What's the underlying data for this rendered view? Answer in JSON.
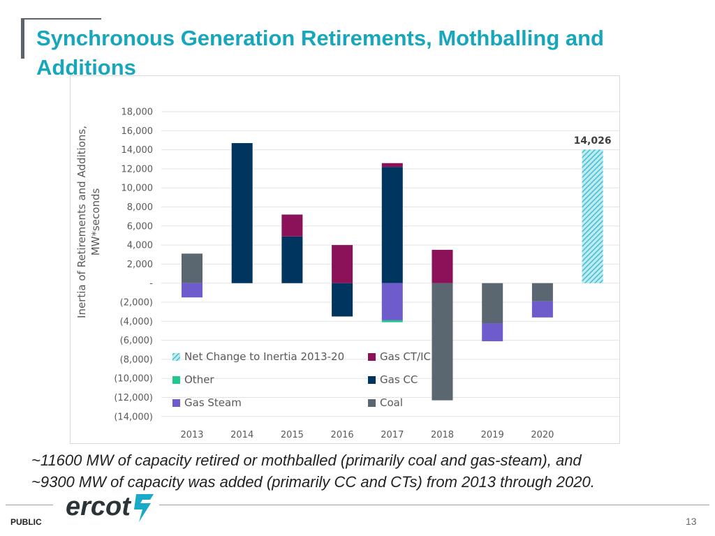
{
  "slide": {
    "title": "Synchronous Generation Retirements, Mothballing and Additions",
    "caption_line1": "~11600 MW of capacity retired or mothballed (primarily coal and gas-steam), and",
    "caption_line2": "~9300 MW of capacity was added (primarily CC and CTs) from 2013 through 2020.",
    "footer_label": "PUBLIC",
    "page_number": "13",
    "logo_text": "ercot"
  },
  "chart_data": {
    "type": "bar",
    "stacked": true,
    "title": "",
    "ylabel_line1": "Inertia of Retirements and Additions,",
    "ylabel_line2": "MW*seconds",
    "ylim": [
      -14000,
      18000
    ],
    "ytick_values": [
      18000,
      16000,
      14000,
      12000,
      10000,
      8000,
      6000,
      4000,
      2000,
      0,
      -2000,
      -4000,
      -6000,
      -8000,
      -10000,
      -12000,
      -14000
    ],
    "ytick_labels": [
      "18,000",
      "16,000",
      "14,000",
      "12,000",
      "10,000",
      "8,000",
      "6,000",
      "4,000",
      "2,000",
      "-",
      "(2,000)",
      "(4,000)",
      "(6,000)",
      "(8,000)",
      "(10,000)",
      "(12,000)",
      "(14,000)"
    ],
    "categories": [
      "2013",
      "2014",
      "2015",
      "2016",
      "2017",
      "2018",
      "2019",
      "2020",
      ""
    ],
    "series": [
      {
        "name": "Coal",
        "color": "#5b6770",
        "values": [
          3100,
          0,
          0,
          0,
          0,
          -12300,
          -4200,
          -1900,
          0
        ]
      },
      {
        "name": "Gas CC",
        "color": "#00355f",
        "values": [
          0,
          14700,
          4900,
          -3500,
          12200,
          0,
          0,
          0,
          0
        ]
      },
      {
        "name": "Gas CT/IC",
        "color": "#8b1258",
        "values": [
          0,
          0,
          2300,
          4000,
          400,
          3500,
          0,
          0,
          0
        ]
      },
      {
        "name": "Gas Steam",
        "color": "#6f5ccc",
        "values": [
          -1500,
          0,
          0,
          0,
          -3900,
          0,
          -1900,
          -1700,
          0
        ]
      },
      {
        "name": "Other",
        "color": "#22c78e",
        "values": [
          0,
          0,
          0,
          0,
          -200,
          0,
          0,
          0,
          0
        ]
      },
      {
        "name": "Net Change to Inertia 2013-20",
        "color": "#3fc0d2",
        "hatched": true,
        "values": [
          0,
          0,
          0,
          0,
          0,
          0,
          0,
          0,
          14026
        ]
      }
    ],
    "annotations": [
      {
        "category_index": 8,
        "text": "14,026"
      }
    ],
    "legend": {
      "placement": "lower-middle",
      "entries": [
        "Net Change to Inertia 2013-20",
        "Gas CT/IC",
        "Other",
        "Gas CC",
        "Gas Steam",
        "Coal"
      ]
    }
  }
}
